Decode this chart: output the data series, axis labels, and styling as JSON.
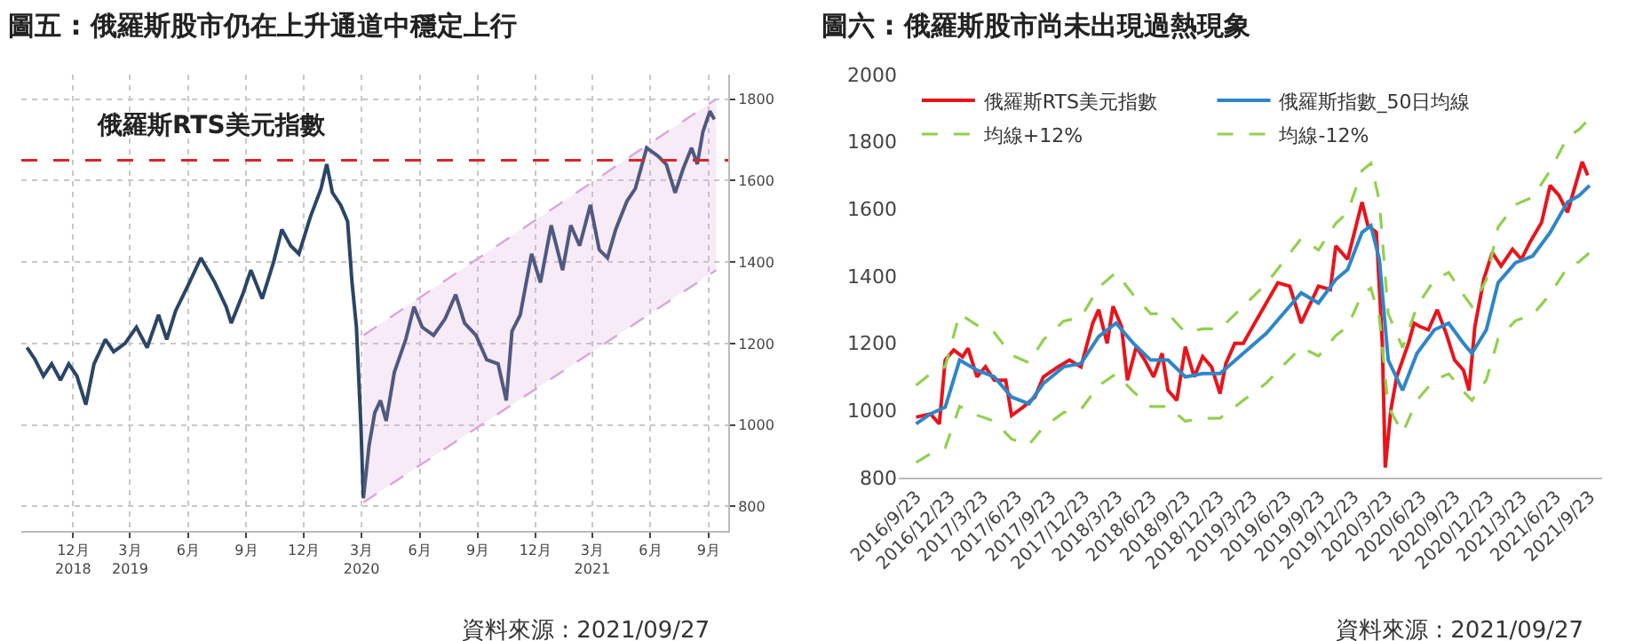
{
  "chart_data": [
    {
      "type": "line",
      "title": "圖五 : 俄羅斯股市仍在上升通道中穩定上行",
      "legend": false,
      "grid": true,
      "annotations": [
        "資料來源 : 2021/09/27"
      ],
      "xlim": [
        "2018-09-24",
        "2021-10-16"
      ],
      "xticks": [
        {
          "value": "2018-12-15",
          "label": "12月\n2018"
        },
        {
          "value": "2019-03-15",
          "label": "3月\n2019"
        },
        {
          "value": "2019-06-15",
          "label": "6月"
        },
        {
          "value": "2019-09-15",
          "label": "9月"
        },
        {
          "value": "2019-12-15",
          "label": "12月"
        },
        {
          "value": "2020-03-15",
          "label": "3月\n2020"
        },
        {
          "value": "2020-06-15",
          "label": "6月"
        },
        {
          "value": "2020-09-15",
          "label": "9月"
        },
        {
          "value": "2020-12-15",
          "label": "12月"
        },
        {
          "value": "2021-03-15",
          "label": "3月\n2021"
        },
        {
          "value": "2021-06-15",
          "label": "6月"
        },
        {
          "value": "2021-09-15",
          "label": "9月"
        }
      ],
      "y2lim": [
        740,
        1860
      ],
      "y2ticks": [
        800,
        1000,
        1200,
        1400,
        1600,
        1800
      ],
      "ref_lines": [
        {
          "axis": "y2",
          "value": 1650,
          "color": "#d62728",
          "line_style": "dashed"
        }
      ],
      "series": [
        {
          "name": "俄羅斯RTS美元指數",
          "color": "#2a4566",
          "axis": "y2",
          "x": [
            "2018-10-03",
            "2018-10-16",
            "2018-10-29",
            "2018-11-11",
            "2018-11-25",
            "2018-12-08",
            "2018-12-21",
            "2019-01-04",
            "2019-01-17",
            "2019-02-04",
            "2019-02-17",
            "2019-03-07",
            "2019-03-25",
            "2019-04-11",
            "2019-04-29",
            "2019-05-12",
            "2019-05-26",
            "2019-06-17",
            "2019-07-05",
            "2019-07-27",
            "2019-08-14",
            "2019-08-22",
            "2019-09-09",
            "2019-09-22",
            "2019-10-10",
            "2019-10-28",
            "2019-11-10",
            "2019-11-24",
            "2019-12-07",
            "2019-12-25",
            "2020-01-11",
            "2020-01-20",
            "2020-01-29",
            "2020-02-11",
            "2020-02-22",
            "2020-02-29",
            "2020-03-07",
            "2020-03-14",
            "2020-03-18",
            "2020-03-27",
            "2020-04-05",
            "2020-04-14",
            "2020-04-23",
            "2020-05-06",
            "2020-05-24",
            "2020-06-06",
            "2020-06-19",
            "2020-07-07",
            "2020-07-25",
            "2020-08-11",
            "2020-08-25",
            "2020-09-12",
            "2020-09-29",
            "2020-10-17",
            "2020-10-30",
            "2020-11-08",
            "2020-11-21",
            "2020-12-09",
            "2020-12-23",
            "2021-01-09",
            "2021-01-27",
            "2021-02-09",
            "2021-02-23",
            "2021-03-12",
            "2021-03-26",
            "2021-04-08",
            "2021-04-21",
            "2021-05-09",
            "2021-05-22",
            "2021-06-09",
            "2021-06-27",
            "2021-07-10",
            "2021-07-24",
            "2021-08-06",
            "2021-08-19",
            "2021-08-28",
            "2021-09-06",
            "2021-09-17",
            "2021-09-24"
          ],
          "values": [
            1190,
            1160,
            1120,
            1150,
            1110,
            1150,
            1120,
            1050,
            1150,
            1210,
            1180,
            1200,
            1240,
            1190,
            1270,
            1210,
            1280,
            1350,
            1410,
            1350,
            1290,
            1250,
            1320,
            1380,
            1310,
            1400,
            1480,
            1440,
            1420,
            1510,
            1580,
            1640,
            1570,
            1540,
            1500,
            1350,
            1240,
            1000,
            820,
            950,
            1030,
            1060,
            1010,
            1130,
            1210,
            1290,
            1240,
            1220,
            1260,
            1320,
            1250,
            1220,
            1160,
            1150,
            1060,
            1230,
            1270,
            1420,
            1350,
            1490,
            1380,
            1490,
            1440,
            1540,
            1430,
            1410,
            1480,
            1550,
            1580,
            1680,
            1660,
            1640,
            1570,
            1630,
            1680,
            1640,
            1720,
            1770,
            1750
          ]
        },
        {
          "color": "#d9a6d9",
          "axis": "y2",
          "line_style": "dashed",
          "x": [
            "2020-03-18",
            "2021-09-27"
          ],
          "values": [
            810,
            1380
          ]
        },
        {
          "type": "area",
          "color": "#d9a6d9",
          "axis": "y2",
          "line_style": "dashed",
          "x": [
            "2020-03-18",
            "2021-09-27"
          ],
          "values": [
            1220,
            1800
          ]
        }
      ]
    },
    {
      "type": "line",
      "title": "圖六 : 俄羅斯股市尚未出現過熱現象",
      "legend": "top left",
      "grid": false,
      "annotations": [
        "資料來源 : 2021/09/27"
      ],
      "xlim": [
        "2016-08-07",
        "2021-10-27"
      ],
      "xticks": [
        {
          "value": "2016-09-23",
          "label": "2016/9/23"
        },
        {
          "value": "2016-12-23",
          "label": "2016/12/23"
        },
        {
          "value": "2017-03-23",
          "label": "2017/3/23"
        },
        {
          "value": "2017-06-23",
          "label": "2017/6/23"
        },
        {
          "value": "2017-09-23",
          "label": "2017/9/23"
        },
        {
          "value": "2017-12-23",
          "label": "2017/12/23"
        },
        {
          "value": "2018-03-23",
          "label": "2018/3/23"
        },
        {
          "value": "2018-06-23",
          "label": "2018/6/23"
        },
        {
          "value": "2018-09-23",
          "label": "2018/9/23"
        },
        {
          "value": "2018-12-23",
          "label": "2018/12/23"
        },
        {
          "value": "2019-03-23",
          "label": "2019/3/23"
        },
        {
          "value": "2019-06-23",
          "label": "2019/6/23"
        },
        {
          "value": "2019-09-23",
          "label": "2019/9/23"
        },
        {
          "value": "2019-12-23",
          "label": "2019/12/23"
        },
        {
          "value": "2020-03-23",
          "label": "2020/3/23"
        },
        {
          "value": "2020-06-23",
          "label": "2020/6/23"
        },
        {
          "value": "2020-09-23",
          "label": "2020/9/23"
        },
        {
          "value": "2020-12-23",
          "label": "2020/12/23"
        },
        {
          "value": "2021-03-23",
          "label": "2021/3/23"
        },
        {
          "value": "2021-06-23",
          "label": "2021/6/23"
        },
        {
          "value": "2021-09-23",
          "label": "2021/9/23"
        }
      ],
      "ylim": [
        800,
        2000
      ],
      "yticks": [
        800,
        1000,
        1200,
        1400,
        1600,
        1800,
        2000
      ],
      "x": [
        "2016-09-23",
        "2016-11-01",
        "2016-12-11",
        "2017-01-19",
        "2017-03-07",
        "2017-04-23",
        "2017-06-09",
        "2017-07-26",
        "2017-09-03",
        "2017-10-28",
        "2017-12-14",
        "2018-01-31",
        "2018-03-19",
        "2018-05-05",
        "2018-06-21",
        "2018-08-07",
        "2018-09-23",
        "2018-11-09",
        "2018-12-26",
        "2019-02-27",
        "2019-05-01",
        "2019-06-01",
        "2019-08-03",
        "2019-09-19",
        "2019-11-05",
        "2019-12-07",
        "2020-01-15",
        "2020-02-08",
        "2020-03-02",
        "2020-03-26",
        "2020-05-04",
        "2020-06-12",
        "2020-07-29",
        "2020-09-06",
        "2020-10-16",
        "2020-11-08",
        "2020-12-17",
        "2021-01-18",
        "2021-03-06",
        "2021-04-22",
        "2021-06-08",
        "2021-07-25",
        "2021-08-26",
        "2021-09-23"
      ],
      "series": [
        {
          "name": "俄羅斯RTS美元指數",
          "color": "#e8141b",
          "x": [
            "2016-09-23",
            "2016-11-01",
            "2016-11-25",
            "2016-12-11",
            "2017-01-03",
            "2017-01-27",
            "2017-02-11",
            "2017-03-07",
            "2017-03-30",
            "2017-04-23",
            "2017-05-24",
            "2017-06-09",
            "2017-07-10",
            "2017-08-11",
            "2017-09-03",
            "2017-10-13",
            "2017-11-13",
            "2017-12-14",
            "2018-01-15",
            "2018-01-31",
            "2018-02-23",
            "2018-03-11",
            "2018-04-03",
            "2018-04-19",
            "2018-05-13",
            "2018-06-05",
            "2018-06-29",
            "2018-07-22",
            "2018-08-07",
            "2018-08-31",
            "2018-09-23",
            "2018-10-17",
            "2018-11-09",
            "2018-12-03",
            "2018-12-26",
            "2019-01-11",
            "2019-02-04",
            "2019-02-27",
            "2019-03-30",
            "2019-06-01",
            "2019-07-03",
            "2019-08-03",
            "2019-09-19",
            "2019-10-21",
            "2019-11-05",
            "2019-12-07",
            "2020-01-15",
            "2020-01-31",
            "2020-02-23",
            "2020-03-10",
            "2020-03-18",
            "2020-04-02",
            "2020-04-18",
            "2020-05-04",
            "2020-05-20",
            "2020-06-04",
            "2020-06-20",
            "2020-07-13",
            "2020-08-06",
            "2020-08-30",
            "2020-09-22",
            "2020-10-16",
            "2020-10-31",
            "2020-11-16",
            "2020-12-10",
            "2021-01-02",
            "2021-01-26",
            "2021-02-26",
            "2021-03-22",
            "2021-04-14",
            "2021-05-16",
            "2021-06-08",
            "2021-07-02",
            "2021-07-25",
            "2021-08-10",
            "2021-09-03",
            "2021-09-18"
          ],
          "values": [
            980,
            990,
            960,
            1150,
            1180,
            1160,
            1185,
            1100,
            1130,
            1090,
            1090,
            985,
            1010,
            1040,
            1100,
            1130,
            1150,
            1130,
            1260,
            1300,
            1200,
            1310,
            1250,
            1090,
            1190,
            1150,
            1100,
            1170,
            1060,
            1030,
            1190,
            1100,
            1160,
            1130,
            1050,
            1140,
            1200,
            1200,
            1260,
            1380,
            1370,
            1260,
            1370,
            1360,
            1490,
            1450,
            1620,
            1550,
            1530,
            1200,
            830,
            1000,
            1100,
            1150,
            1200,
            1260,
            1250,
            1240,
            1300,
            1230,
            1150,
            1120,
            1060,
            1250,
            1390,
            1470,
            1430,
            1480,
            1450,
            1500,
            1560,
            1670,
            1640,
            1590,
            1650,
            1740,
            1700
          ]
        },
        {
          "name": "俄羅斯指數_50日均線",
          "color": "#2e86c8",
          "values": [
            960,
            990,
            1010,
            1150,
            1120,
            1100,
            1040,
            1020,
            1080,
            1130,
            1140,
            1220,
            1260,
            1200,
            1150,
            1150,
            1100,
            1110,
            1110,
            1170,
            1230,
            1270,
            1350,
            1320,
            1390,
            1420,
            1530,
            1550,
            1450,
            1150,
            1060,
            1170,
            1240,
            1260,
            1200,
            1170,
            1240,
            1380,
            1440,
            1460,
            1530,
            1620,
            1640,
            1670
          ]
        },
        {
          "name": "均線+12%",
          "color": "#92d050",
          "line_style": "dashed",
          "values": [
            1075,
            1109,
            1131,
            1288,
            1254,
            1232,
            1165,
            1142,
            1210,
            1266,
            1277,
            1366,
            1411,
            1344,
            1288,
            1288,
            1232,
            1243,
            1243,
            1310,
            1378,
            1422,
            1512,
            1478,
            1557,
            1590,
            1714,
            1736,
            1624,
            1288,
            1187,
            1310,
            1389,
            1411,
            1344,
            1310,
            1389,
            1546,
            1613,
            1635,
            1714,
            1814,
            1837,
            1870
          ]
        },
        {
          "name": "均線-12%",
          "color": "#92d050",
          "line_style": "dashed",
          "values": [
            845,
            871,
            889,
            1012,
            986,
            968,
            915,
            898,
            950,
            994,
            1003,
            1074,
            1109,
            1056,
            1012,
            1012,
            968,
            977,
            977,
            1030,
            1082,
            1118,
            1188,
            1162,
            1223,
            1250,
            1346,
            1364,
            1276,
            1012,
            933,
            1030,
            1091,
            1109,
            1056,
            1030,
            1091,
            1214,
            1267,
            1285,
            1346,
            1426,
            1443,
            1470
          ]
        }
      ]
    }
  ]
}
